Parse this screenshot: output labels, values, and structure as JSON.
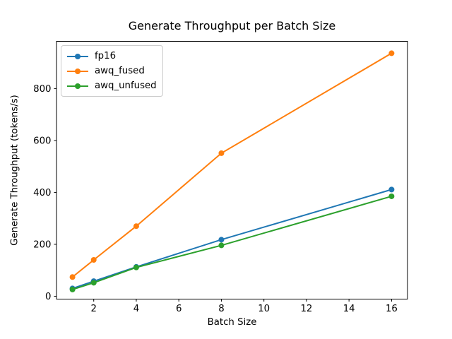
{
  "figure": {
    "background": "#ffffff"
  },
  "chart_data": {
    "type": "line",
    "title": "Generate Throughput per Batch Size",
    "xlabel": "Batch Size",
    "ylabel": "Generate Throughput (tokens/s)",
    "x": [
      1,
      2,
      4,
      8,
      16
    ],
    "series": [
      {
        "name": "fp16",
        "color": "#1f77b4",
        "values": [
          30,
          58,
          113,
          218,
          411
        ]
      },
      {
        "name": "awq_fused",
        "color": "#ff7f0e",
        "values": [
          74,
          140,
          270,
          551,
          936
        ]
      },
      {
        "name": "awq_unfused",
        "color": "#2ca02c",
        "values": [
          26,
          52,
          111,
          196,
          385
        ]
      }
    ],
    "xlim": [
      0.25,
      16.75
    ],
    "ylim": [
      -11,
      982
    ],
    "x_ticks": [
      2,
      4,
      6,
      8,
      10,
      12,
      14,
      16
    ],
    "y_ticks": [
      0,
      200,
      400,
      600,
      800
    ],
    "grid": false,
    "legend_position": "upper-left",
    "marker": "circle",
    "axis_color": "#000000"
  }
}
